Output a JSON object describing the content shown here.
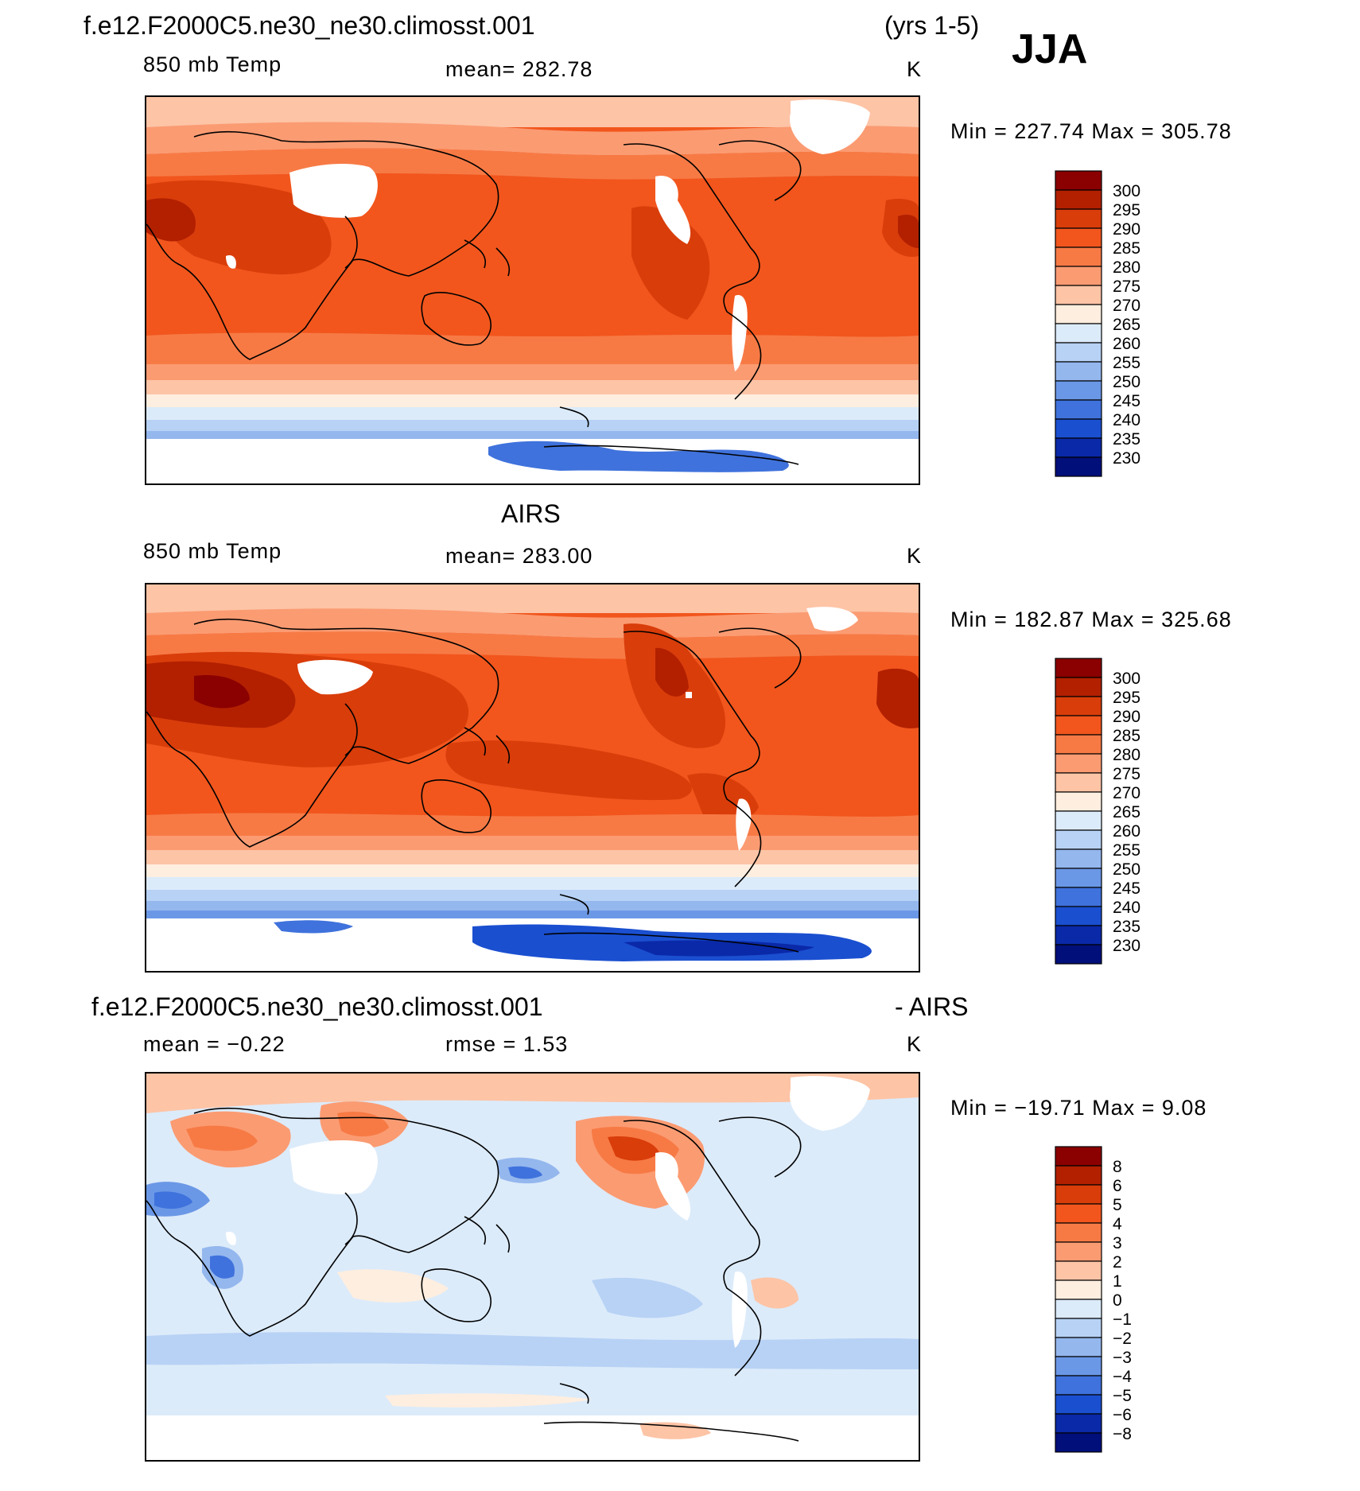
{
  "header": {
    "case_name": "f.e12.F2000C5.ne30_ne30.climosst.001",
    "years": "(yrs 1-5)",
    "season": "JJA"
  },
  "panels": [
    {
      "id": "model",
      "variable": "850 mb Temp",
      "stat": "mean=  282.78",
      "unit": "K",
      "minmax": "Min  =  227.74  Max  =  305.78",
      "colorbar_labels": [
        "300",
        "295",
        "290",
        "285",
        "280",
        "275",
        "270",
        "265",
        "260",
        "255",
        "250",
        "245",
        "240",
        "235",
        "230"
      ]
    },
    {
      "id": "airs",
      "title": "AIRS",
      "variable": "850 mb Temp",
      "stat": "mean=  283.00",
      "unit": "K",
      "minmax": "Min  =  182.87  Max  =  325.68",
      "colorbar_labels": [
        "300",
        "295",
        "290",
        "285",
        "280",
        "275",
        "270",
        "265",
        "260",
        "255",
        "250",
        "245",
        "240",
        "235",
        "230"
      ]
    },
    {
      "id": "diff",
      "title_left": "f.e12.F2000C5.ne30_ne30.climosst.001",
      "title_right": "- AIRS",
      "stat_mean": "mean  =   −0.22",
      "stat_rmse": "rmse  =      1.53",
      "unit": "K",
      "minmax": "Min  =  −19.71  Max  =      9.08",
      "colorbar_labels": [
        "8",
        "6",
        "5",
        "4",
        "3",
        "2",
        "1",
        "0",
        "−1",
        "−2",
        "−3",
        "−4",
        "−5",
        "−6",
        "−8"
      ]
    }
  ],
  "colors": {
    "temp_scale": [
      "#8b0000",
      "#b22000",
      "#d93d0a",
      "#f2561d",
      "#f77a45",
      "#fb9b72",
      "#fdc4a6",
      "#feeedf",
      "#dcebfa",
      "#b7d2f5",
      "#94b7ee",
      "#6b98e6",
      "#3f72dc",
      "#1a4fd0",
      "#0a29a8",
      "#000f7a"
    ],
    "diff_scale": [
      "#8b0000",
      "#b22000",
      "#d93d0a",
      "#f2561d",
      "#f77a45",
      "#fb9b72",
      "#fdc4a6",
      "#feeedf",
      "#dcebfa",
      "#b7d2f5",
      "#94b7ee",
      "#6b98e6",
      "#3f72dc",
      "#1a4fd0",
      "#0a29a8",
      "#000f7a"
    ]
  }
}
